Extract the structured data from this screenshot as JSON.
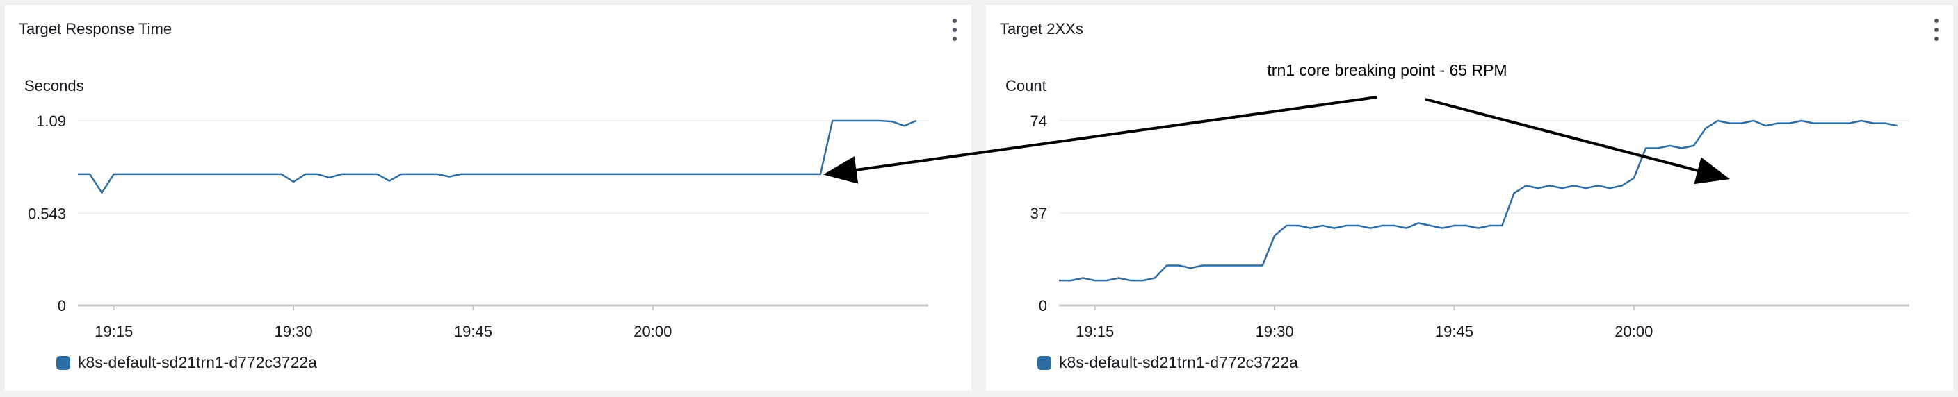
{
  "colors": {
    "series": "#2e6da4",
    "grid": "#ececec",
    "axis": "#c8c8c8",
    "annotation": "#000000"
  },
  "panels": [
    {
      "title": "Target Response Time",
      "menu_icon": "kebab-menu-icon"
    },
    {
      "title": "Target 2XXs",
      "menu_icon": "kebab-menu-icon"
    }
  ],
  "annotation": {
    "text": "trn1 core breaking point - 65 RPM"
  },
  "chart_data": [
    {
      "type": "line",
      "title": "Target Response Time",
      "ylabel": "Seconds",
      "ylim": [
        0,
        1.09
      ],
      "yticks": [
        "1.09",
        "0.543",
        "0"
      ],
      "ytick_values": [
        1.09,
        0.543,
        0
      ],
      "xlim": [
        "19:12",
        "20:23"
      ],
      "xticks": [
        "19:15",
        "19:30",
        "19:45",
        "20:00"
      ],
      "grid": true,
      "legend_position": "bottom-left",
      "series": [
        {
          "name": "k8s-default-sd21trn1-d772c3722a",
          "x": [
            "19:12",
            "19:13",
            "19:14",
            "19:15",
            "19:16",
            "19:17",
            "19:18",
            "19:19",
            "19:20",
            "19:21",
            "19:22",
            "19:23",
            "19:24",
            "19:25",
            "19:26",
            "19:27",
            "19:28",
            "19:29",
            "19:30",
            "19:31",
            "19:32",
            "19:33",
            "19:34",
            "19:35",
            "19:36",
            "19:37",
            "19:38",
            "19:39",
            "19:40",
            "19:41",
            "19:42",
            "19:43",
            "19:44",
            "19:45",
            "19:46",
            "19:47",
            "19:48",
            "19:49",
            "19:50",
            "19:51",
            "19:52",
            "19:53",
            "19:54",
            "19:55",
            "19:56",
            "19:57",
            "19:58",
            "19:59",
            "20:00",
            "20:01",
            "20:02",
            "20:03",
            "20:04",
            "20:05",
            "20:06",
            "20:07",
            "20:08",
            "20:09",
            "20:10",
            "20:11",
            "20:12",
            "20:13",
            "20:14",
            "20:15",
            "20:16",
            "20:17",
            "20:18",
            "20:19",
            "20:20",
            "20:21",
            "20:22"
          ],
          "values": [
            0.775,
            0.775,
            0.665,
            0.775,
            0.775,
            0.775,
            0.775,
            0.775,
            0.775,
            0.775,
            0.775,
            0.775,
            0.775,
            0.775,
            0.775,
            0.775,
            0.775,
            0.775,
            0.73,
            0.775,
            0.775,
            0.755,
            0.775,
            0.775,
            0.775,
            0.775,
            0.735,
            0.775,
            0.775,
            0.775,
            0.775,
            0.76,
            0.775,
            0.775,
            0.775,
            0.775,
            0.775,
            0.775,
            0.775,
            0.775,
            0.775,
            0.775,
            0.775,
            0.775,
            0.775,
            0.775,
            0.775,
            0.775,
            0.775,
            0.775,
            0.775,
            0.775,
            0.775,
            0.775,
            0.775,
            0.775,
            0.775,
            0.775,
            0.775,
            0.775,
            0.775,
            0.775,
            0.775,
            1.09,
            1.09,
            1.09,
            1.09,
            1.09,
            1.085,
            1.06,
            1.09
          ]
        }
      ]
    },
    {
      "type": "line",
      "title": "Target 2XXs",
      "ylabel": "Count",
      "ylim": [
        0,
        74
      ],
      "yticks": [
        "74",
        "37",
        "0"
      ],
      "ytick_values": [
        74,
        37,
        0
      ],
      "xlim": [
        "19:12",
        "20:23"
      ],
      "xticks": [
        "19:15",
        "19:30",
        "19:45",
        "20:00"
      ],
      "grid": true,
      "legend_position": "bottom-left",
      "series": [
        {
          "name": "k8s-default-sd21trn1-d772c3722a",
          "x": [
            "19:12",
            "19:13",
            "19:14",
            "19:15",
            "19:16",
            "19:17",
            "19:18",
            "19:19",
            "19:20",
            "19:21",
            "19:22",
            "19:23",
            "19:24",
            "19:25",
            "19:26",
            "19:27",
            "19:28",
            "19:29",
            "19:30",
            "19:31",
            "19:32",
            "19:33",
            "19:34",
            "19:35",
            "19:36",
            "19:37",
            "19:38",
            "19:39",
            "19:40",
            "19:41",
            "19:42",
            "19:43",
            "19:44",
            "19:45",
            "19:46",
            "19:47",
            "19:48",
            "19:49",
            "19:50",
            "19:51",
            "19:52",
            "19:53",
            "19:54",
            "19:55",
            "19:56",
            "19:57",
            "19:58",
            "19:59",
            "20:00",
            "20:01",
            "20:02",
            "20:03",
            "20:04",
            "20:05",
            "20:06",
            "20:07",
            "20:08",
            "20:09",
            "20:10",
            "20:11",
            "20:12",
            "20:13",
            "20:14",
            "20:15",
            "20:16",
            "20:17",
            "20:18",
            "20:19",
            "20:20",
            "20:21",
            "20:22"
          ],
          "values": [
            10,
            10,
            11,
            10,
            10,
            11,
            10,
            10,
            11,
            16,
            16,
            15,
            16,
            16,
            16,
            16,
            16,
            16,
            28,
            32,
            32,
            31,
            32,
            31,
            32,
            32,
            31,
            32,
            32,
            31,
            33,
            32,
            31,
            32,
            32,
            31,
            32,
            32,
            45,
            48,
            47,
            48,
            47,
            48,
            47,
            48,
            47,
            48,
            51,
            63,
            63,
            64,
            63,
            64,
            71,
            74,
            73,
            73,
            74,
            72,
            73,
            73,
            74,
            73,
            73,
            73,
            73,
            74,
            73,
            73,
            72
          ]
        }
      ]
    }
  ]
}
